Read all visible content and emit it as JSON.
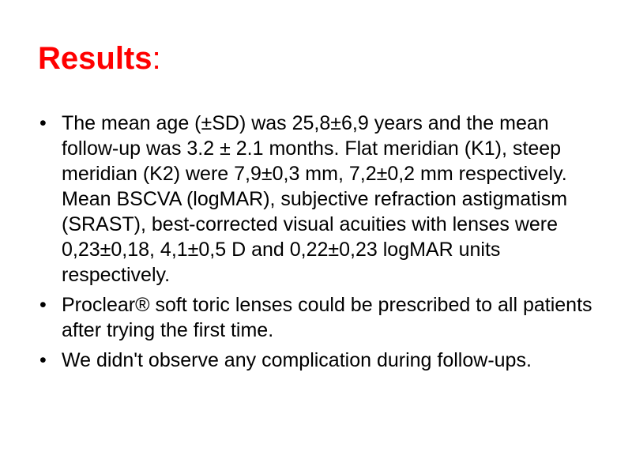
{
  "slide": {
    "title": "Results",
    "title_suffix": ":",
    "title_color": "#ff0000",
    "text_color": "#000000",
    "background": "#ffffff",
    "bullet_glyph": "•",
    "bullets": [
      "The mean age (±SD) was 25,8±6,9 years and the mean follow-up was 3.2 ± 2.1 months. Flat meridian (K1), steep meridian (K2) were 7,9±0,3 mm, 7,2±0,2 mm respectively. Mean BSCVA (logMAR), subjective refraction astigmatism (SRAST), best-corrected visual acuities with lenses were 0,23±0,18, 4,1±0,5 D and 0,22±0,23 logMAR units respectively.",
      "Proclear® soft toric lenses could be prescribed to all patients after trying the first time.",
      "We didn't observe any complication during follow-ups."
    ]
  }
}
